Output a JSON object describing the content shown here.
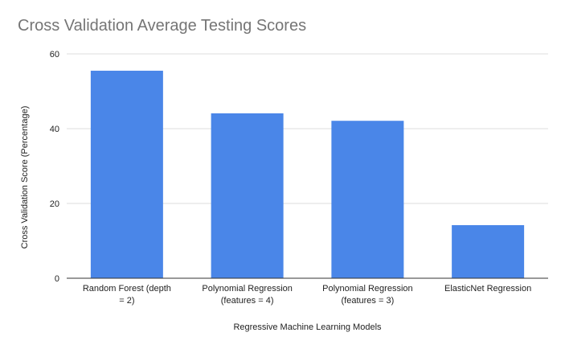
{
  "chart_data": {
    "type": "bar",
    "title": "Cross Validation Average Testing Scores",
    "xlabel": "Regressive Machine Learning Models",
    "ylabel": "Cross Validation Score (Percentage)",
    "categories": [
      [
        "Random Forest (depth",
        "= 2)"
      ],
      [
        "Polynomial Regression",
        "(features = 4)"
      ],
      [
        "Polynomial Regression",
        "(features = 3)"
      ],
      [
        "ElasticNet Regression"
      ]
    ],
    "values": [
      55.5,
      44.1,
      42.1,
      14.2
    ],
    "ylim": [
      0,
      60
    ],
    "yticks": [
      0,
      20,
      40,
      60
    ],
    "grid": true,
    "legend": "none",
    "colors": {
      "bar": "#4a86e8",
      "grid": "#dddddd",
      "axis": "#333333",
      "title": "#757575",
      "text": "#222222"
    }
  }
}
